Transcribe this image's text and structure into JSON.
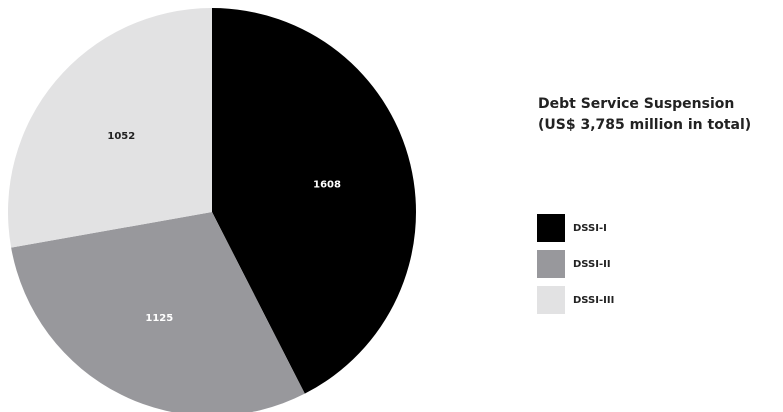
{
  "chart_data": {
    "type": "pie",
    "title": "Debt Service Suspension",
    "subtitle": "(US$ 3,785 million in total)",
    "categories": [
      "DSSI-I",
      "DSSI-II",
      "DSSI-III"
    ],
    "values": [
      1608,
      1125,
      1052
    ],
    "data_labels": [
      "1608",
      "1125",
      "1052"
    ],
    "colors": [
      "#000000",
      "#98989c",
      "#e2e2e3"
    ],
    "label_colors": [
      "#ffffff",
      "#ffffff",
      "#222222"
    ],
    "legend": {
      "placement": "right",
      "entries": [
        "DSSI-I",
        "DSSI-II",
        "DSSI-III"
      ]
    }
  }
}
